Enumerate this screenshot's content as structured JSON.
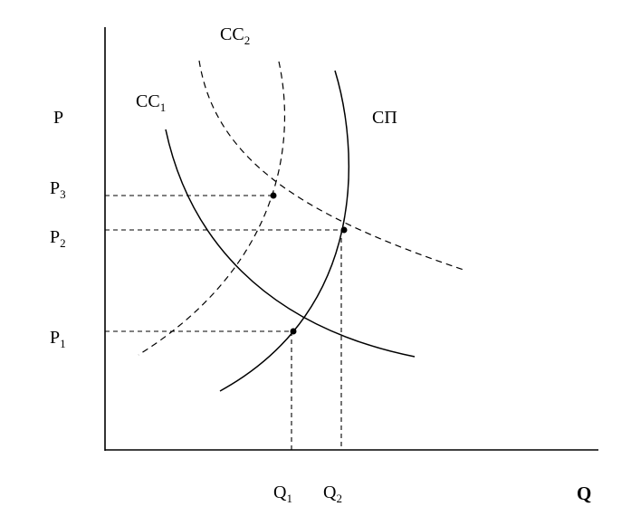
{
  "axes": {
    "y_label": "P",
    "x_label": "Q"
  },
  "price_labels": [
    {
      "base": "P",
      "sub": "3"
    },
    {
      "base": "P",
      "sub": "2"
    },
    {
      "base": "P",
      "sub": "1"
    }
  ],
  "quantity_labels": [
    {
      "base": "Q",
      "sub": "1"
    },
    {
      "base": "Q",
      "sub": "2"
    }
  ],
  "curves": {
    "demand_1": {
      "base": "CC",
      "sub": "1",
      "style": "solid"
    },
    "demand_2": {
      "base": "CC",
      "sub": "2",
      "style": "dashed"
    },
    "supply": {
      "label": "СП",
      "style": "solid"
    }
  },
  "equilibria": [
    {
      "price": "P1",
      "quantity": "Q1"
    },
    {
      "price": "P2",
      "quantity": "Q2"
    },
    {
      "price": "P3"
    }
  ],
  "colors": {
    "ink": "#000000",
    "background": "#ffffff"
  }
}
